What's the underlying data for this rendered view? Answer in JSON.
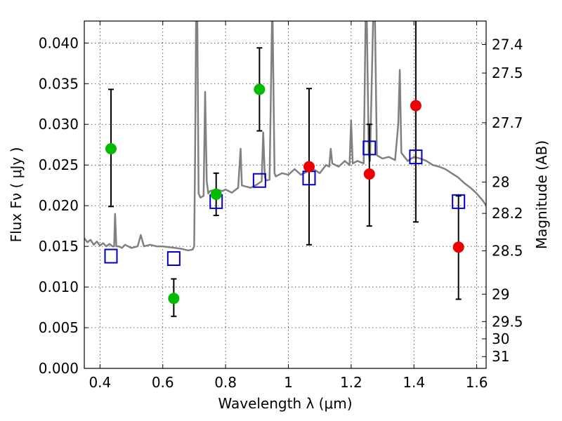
{
  "chart_data": {
    "type": "scatter",
    "title": "",
    "xlabel": "Wavelength  λ (μm)",
    "ylabel": "Flux  Fν  ( μJy )",
    "ylabel_right": "Magnitude (AB)",
    "xlim": [
      0.35,
      1.63
    ],
    "ylim": [
      0.0,
      0.0427
    ],
    "grid": true,
    "x_ticks": [
      {
        "value": 0.4,
        "label": "0.4"
      },
      {
        "value": 0.6,
        "label": "0.6"
      },
      {
        "value": 0.8,
        "label": "0.8"
      },
      {
        "value": 1.0,
        "label": "1"
      },
      {
        "value": 1.2,
        "label": "1.2"
      },
      {
        "value": 1.4,
        "label": "1.4"
      },
      {
        "value": 1.6,
        "label": "1.6"
      }
    ],
    "y_ticks": [
      {
        "value": 0.0,
        "label": "0.000"
      },
      {
        "value": 0.005,
        "label": "0.005"
      },
      {
        "value": 0.01,
        "label": "0.010"
      },
      {
        "value": 0.015,
        "label": "0.015"
      },
      {
        "value": 0.02,
        "label": "0.020"
      },
      {
        "value": 0.025,
        "label": "0.025"
      },
      {
        "value": 0.03,
        "label": "0.030"
      },
      {
        "value": 0.035,
        "label": "0.035"
      },
      {
        "value": 0.04,
        "label": "0.040"
      }
    ],
    "right_ticks": [
      {
        "mag": 27.4,
        "label": "27.4"
      },
      {
        "mag": 27.5,
        "label": "27.5"
      },
      {
        "mag": 27.7,
        "label": "27.7"
      },
      {
        "mag": 28,
        "label": "28"
      },
      {
        "mag": 28.2,
        "label": "28.2"
      },
      {
        "mag": 28.5,
        "label": "28.5"
      },
      {
        "mag": 29,
        "label": "29"
      },
      {
        "mag": 29.5,
        "label": "29.5"
      },
      {
        "mag": 30,
        "label": "30"
      },
      {
        "mag": 31,
        "label": "31"
      }
    ],
    "colors": {
      "spectrum": "#808080",
      "green_points": "#00bb00",
      "red_points": "#ee0000",
      "model_squares": "#0000cc",
      "errorbars": "#000000"
    },
    "spectrum": {
      "x": [
        0.35,
        0.36,
        0.37,
        0.38,
        0.39,
        0.4,
        0.41,
        0.42,
        0.43,
        0.44,
        0.445,
        0.448,
        0.452,
        0.46,
        0.47,
        0.48,
        0.5,
        0.52,
        0.53,
        0.54,
        0.56,
        0.58,
        0.6,
        0.62,
        0.64,
        0.66,
        0.68,
        0.695,
        0.7,
        0.703,
        0.706,
        0.71,
        0.714,
        0.72,
        0.73,
        0.735,
        0.74,
        0.745,
        0.75,
        0.77,
        0.79,
        0.8,
        0.82,
        0.84,
        0.848,
        0.852,
        0.86,
        0.88,
        0.9,
        0.915,
        0.92,
        0.925,
        0.93,
        0.94,
        0.948,
        0.95,
        0.956,
        0.96,
        0.98,
        1.0,
        1.02,
        1.04,
        1.06,
        1.08,
        1.1,
        1.12,
        1.13,
        1.135,
        1.14,
        1.16,
        1.18,
        1.195,
        1.2,
        1.205,
        1.22,
        1.24,
        1.246,
        1.25,
        1.256,
        1.26,
        1.27,
        1.276,
        1.282,
        1.3,
        1.32,
        1.34,
        1.35,
        1.355,
        1.36,
        1.38,
        1.4,
        1.42,
        1.44,
        1.46,
        1.48,
        1.5,
        1.52,
        1.54,
        1.56,
        1.58,
        1.6,
        1.62,
        1.63
      ],
      "y": [
        0.016,
        0.0155,
        0.0158,
        0.0152,
        0.0156,
        0.0151,
        0.0154,
        0.015,
        0.0153,
        0.015,
        0.015,
        0.019,
        0.015,
        0.015,
        0.0148,
        0.0152,
        0.0148,
        0.015,
        0.0164,
        0.015,
        0.0152,
        0.015,
        0.015,
        0.0149,
        0.0148,
        0.0147,
        0.0145,
        0.0146,
        0.015,
        0.026,
        0.0427,
        0.0427,
        0.0215,
        0.021,
        0.0212,
        0.034,
        0.023,
        0.0215,
        0.0218,
        0.022,
        0.0218,
        0.022,
        0.0216,
        0.0222,
        0.027,
        0.0225,
        0.0224,
        0.0222,
        0.0226,
        0.023,
        0.029,
        0.0235,
        0.0231,
        0.0232,
        0.0427,
        0.0427,
        0.024,
        0.0236,
        0.024,
        0.0238,
        0.0245,
        0.0238,
        0.0242,
        0.0245,
        0.024,
        0.025,
        0.0248,
        0.027,
        0.0252,
        0.0248,
        0.0255,
        0.025,
        0.0305,
        0.0252,
        0.0255,
        0.0252,
        0.0427,
        0.0427,
        0.0265,
        0.0255,
        0.0427,
        0.0427,
        0.0262,
        0.0258,
        0.026,
        0.0256,
        0.03,
        0.0367,
        0.0265,
        0.0255,
        0.026,
        0.0258,
        0.0255,
        0.025,
        0.0248,
        0.0245,
        0.024,
        0.0235,
        0.0228,
        0.0222,
        0.0215,
        0.0206,
        0.02
      ]
    },
    "green_points": [
      {
        "x": 0.435,
        "y": 0.027,
        "yerr_low": 0.0199,
        "yerr_high": 0.0343
      },
      {
        "x": 0.635,
        "y": 0.0086,
        "yerr_low": 0.0064,
        "yerr_high": 0.011
      },
      {
        "x": 0.77,
        "y": 0.0214,
        "yerr_low": 0.0188,
        "yerr_high": 0.024
      },
      {
        "x": 0.908,
        "y": 0.0343,
        "yerr_low": 0.0292,
        "yerr_high": 0.0394
      }
    ],
    "red_points": [
      {
        "x": 1.066,
        "y": 0.0248,
        "yerr_low": 0.0152,
        "yerr_high": 0.0344
      },
      {
        "x": 1.258,
        "y": 0.0239,
        "yerr_low": 0.0175,
        "yerr_high": 0.03
      },
      {
        "x": 1.406,
        "y": 0.0323,
        "yerr_low": 0.018,
        "yerr_high": 0.0427
      },
      {
        "x": 1.542,
        "y": 0.0149,
        "yerr_low": 0.0085,
        "yerr_high": 0.0212
      }
    ],
    "model_squares": [
      {
        "x": 0.435,
        "y": 0.0138
      },
      {
        "x": 0.635,
        "y": 0.0135
      },
      {
        "x": 0.77,
        "y": 0.0205
      },
      {
        "x": 0.908,
        "y": 0.0231
      },
      {
        "x": 1.066,
        "y": 0.0234
      },
      {
        "x": 1.258,
        "y": 0.0271
      },
      {
        "x": 1.406,
        "y": 0.026
      },
      {
        "x": 1.542,
        "y": 0.0205
      }
    ]
  }
}
